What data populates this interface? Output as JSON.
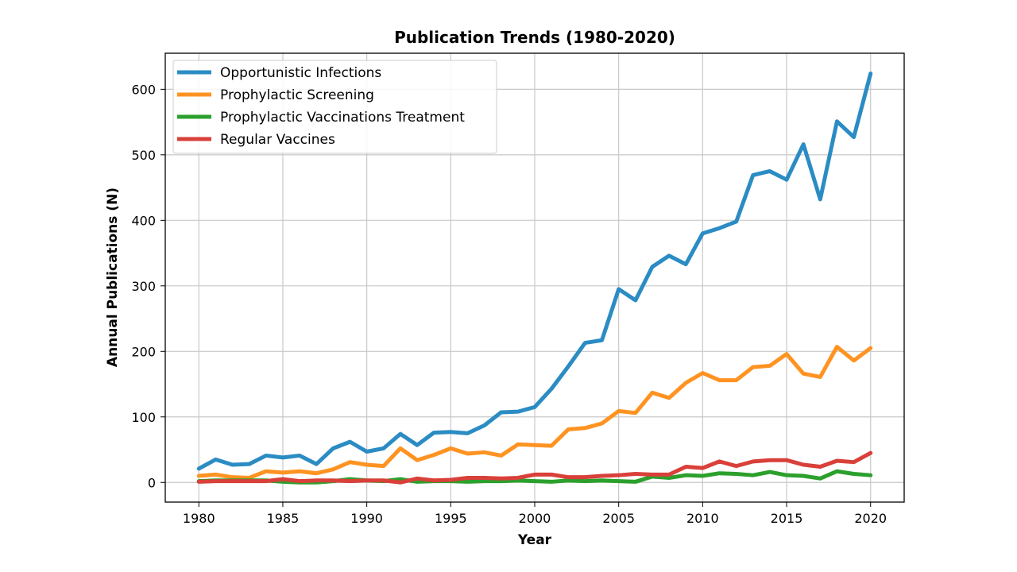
{
  "chart_data": {
    "type": "line",
    "title": "Publication Trends (1980-2020)",
    "xlabel": "Year",
    "ylabel": "Annual Publications (N)",
    "xlim": [
      1978,
      2022
    ],
    "ylim": [
      -30,
      655
    ],
    "x_ticks": [
      1980,
      1985,
      1990,
      1995,
      2000,
      2005,
      2010,
      2015,
      2020
    ],
    "y_ticks": [
      0,
      100,
      200,
      300,
      400,
      500,
      600
    ],
    "grid": true,
    "legend_position": "top-left",
    "x": [
      1980,
      1981,
      1982,
      1983,
      1984,
      1985,
      1986,
      1987,
      1988,
      1989,
      1990,
      1991,
      1992,
      1993,
      1994,
      1995,
      1996,
      1997,
      1998,
      1999,
      2000,
      2001,
      2002,
      2003,
      2004,
      2005,
      2006,
      2007,
      2008,
      2009,
      2010,
      2011,
      2012,
      2013,
      2014,
      2015,
      2016,
      2017,
      2018,
      2019,
      2020
    ],
    "series": [
      {
        "name": "Opportunistic Infections",
        "color": "#2b8cc4",
        "values": [
          21,
          35,
          27,
          28,
          41,
          38,
          41,
          28,
          52,
          62,
          47,
          52,
          74,
          57,
          76,
          77,
          75,
          87,
          107,
          108,
          115,
          143,
          177,
          213,
          217,
          295,
          278,
          329,
          346,
          333,
          380,
          388,
          398,
          469,
          475,
          462,
          516,
          432,
          551,
          527,
          624
        ]
      },
      {
        "name": "Prophylactic Screening",
        "color": "#ff9322",
        "values": [
          10,
          12,
          8,
          7,
          17,
          15,
          17,
          14,
          20,
          31,
          27,
          25,
          52,
          34,
          42,
          52,
          44,
          46,
          41,
          58,
          57,
          56,
          81,
          83,
          90,
          109,
          106,
          137,
          129,
          152,
          167,
          156,
          156,
          176,
          178,
          196,
          166,
          161,
          207,
          186,
          205
        ]
      },
      {
        "name": "Prophylactic Vaccinations Treatment",
        "color": "#2ca02c",
        "values": [
          2,
          3,
          3,
          3,
          3,
          1,
          0,
          0,
          2,
          5,
          3,
          2,
          5,
          1,
          2,
          2,
          1,
          2,
          2,
          3,
          2,
          1,
          3,
          2,
          3,
          2,
          1,
          9,
          7,
          11,
          10,
          14,
          13,
          11,
          16,
          11,
          10,
          6,
          17,
          13,
          11
        ]
      },
      {
        "name": "Regular Vaccines",
        "color": "#d9403a",
        "values": [
          1,
          2,
          2,
          2,
          2,
          5,
          2,
          3,
          3,
          2,
          3,
          3,
          0,
          6,
          3,
          4,
          7,
          7,
          6,
          7,
          12,
          12,
          8,
          8,
          10,
          11,
          13,
          12,
          12,
          24,
          22,
          32,
          25,
          32,
          34,
          34,
          27,
          24,
          33,
          31,
          45
        ]
      }
    ]
  }
}
